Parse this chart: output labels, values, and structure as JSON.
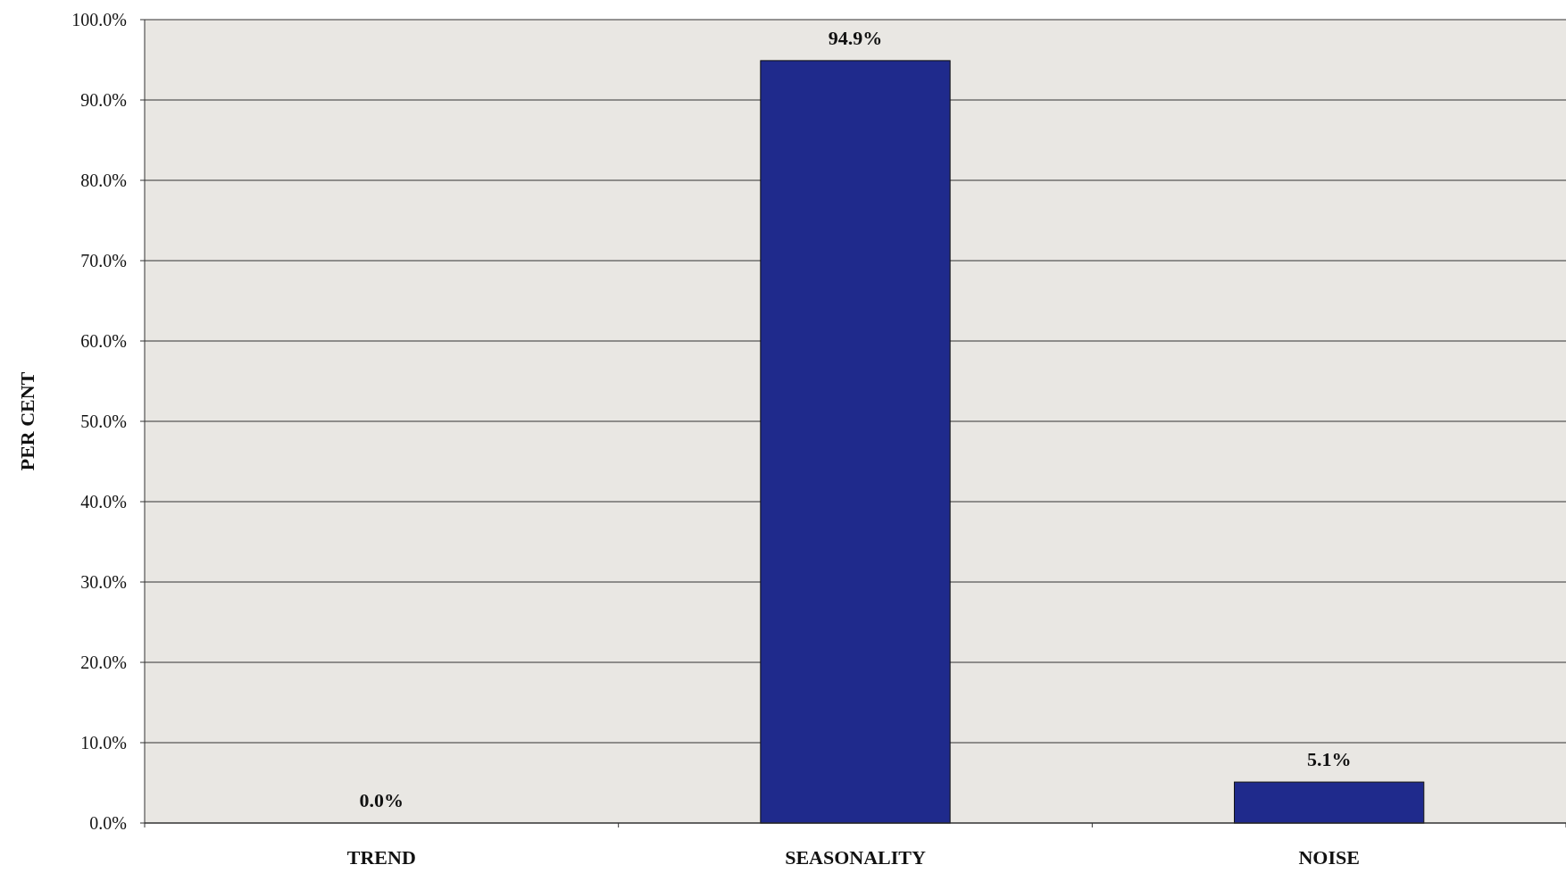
{
  "chart_data": {
    "type": "bar",
    "ylabel": "PER CENT",
    "categories": [
      "TREND",
      "SEASONALITY",
      "NOISE"
    ],
    "values": [
      0.0,
      94.9,
      5.1
    ],
    "value_labels": [
      "0.0%",
      "94.9%",
      "5.1%"
    ],
    "color": "#1f2a8c",
    "ylim": [
      0,
      100
    ],
    "yticks": [
      {
        "value": 0,
        "label": "0.0%"
      },
      {
        "value": 10,
        "label": "10.0%"
      },
      {
        "value": 20,
        "label": "20.0%"
      },
      {
        "value": 30,
        "label": "30.0%"
      },
      {
        "value": 40,
        "label": "40.0%"
      },
      {
        "value": 50,
        "label": "50.0%"
      },
      {
        "value": 60,
        "label": "60.0%"
      },
      {
        "value": 70,
        "label": "70.0%"
      },
      {
        "value": 80,
        "label": "80.0%"
      },
      {
        "value": 90,
        "label": "90.0%"
      },
      {
        "value": 100,
        "label": "100.0%"
      }
    ],
    "grid": "y"
  }
}
